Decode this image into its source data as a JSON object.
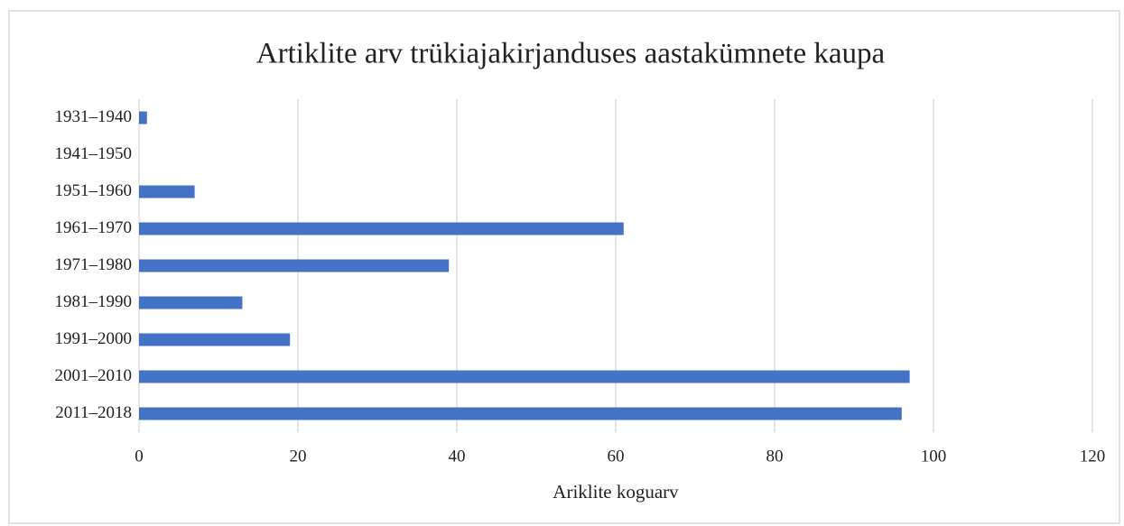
{
  "chart_data": {
    "type": "bar",
    "orientation": "horizontal",
    "title": "Artiklite arv trükiajakirjanduses aastakümnete kaupa",
    "x_label": "Ariklite koguarv",
    "categories": [
      "1931–1940",
      "1941–1950",
      "1951–1960",
      "1961–1970",
      "1971–1980",
      "1981–1990",
      "1991–2000",
      "2001–2010",
      "2011–2018"
    ],
    "values": [
      1,
      0,
      7,
      61,
      39,
      13,
      19,
      97,
      96
    ],
    "color": "#4472c4",
    "xlim": [
      0,
      120
    ],
    "xticks": [
      0,
      20,
      40,
      60,
      80,
      100,
      120
    ],
    "grid": true
  }
}
